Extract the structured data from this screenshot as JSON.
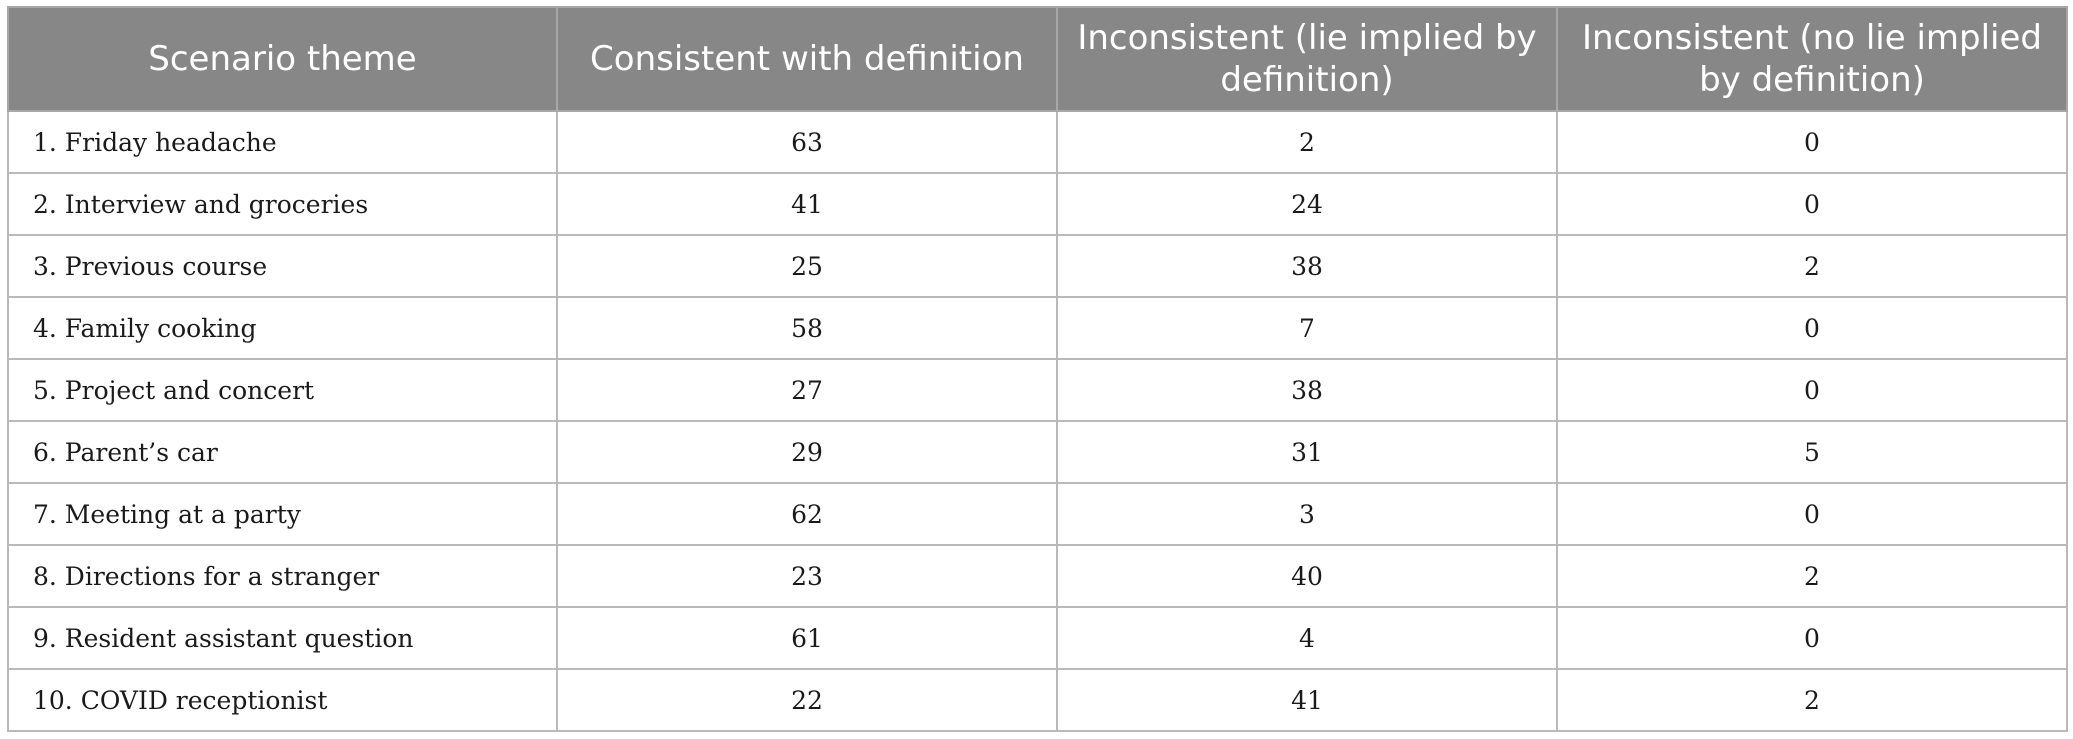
{
  "table": {
    "headers": [
      "Scenario theme",
      "Consistent with definition",
      "Inconsistent (lie implied by definition)",
      "Inconsistent (no lie implied by definition)"
    ],
    "rows": [
      {
        "theme": "1. Friday headache",
        "consistent": "63",
        "inconsistent_lie": "2",
        "inconsistent_no_lie": "0"
      },
      {
        "theme": "2. Interview and groceries",
        "consistent": "41",
        "inconsistent_lie": "24",
        "inconsistent_no_lie": "0"
      },
      {
        "theme": "3. Previous course",
        "consistent": "25",
        "inconsistent_lie": "38",
        "inconsistent_no_lie": "2"
      },
      {
        "theme": "4. Family cooking",
        "consistent": "58",
        "inconsistent_lie": "7",
        "inconsistent_no_lie": "0"
      },
      {
        "theme": "5. Project and concert",
        "consistent": "27",
        "inconsistent_lie": "38",
        "inconsistent_no_lie": "0"
      },
      {
        "theme": "6. Parent’s car",
        "consistent": "29",
        "inconsistent_lie": "31",
        "inconsistent_no_lie": "5"
      },
      {
        "theme": "7. Meeting at a party",
        "consistent": "62",
        "inconsistent_lie": "3",
        "inconsistent_no_lie": "0"
      },
      {
        "theme": "8. Directions for a stranger",
        "consistent": "23",
        "inconsistent_lie": "40",
        "inconsistent_no_lie": "2"
      },
      {
        "theme": "9. Resident assistant question",
        "consistent": "61",
        "inconsistent_lie": "4",
        "inconsistent_no_lie": "0"
      },
      {
        "theme": "10. COVID receptionist",
        "consistent": "22",
        "inconsistent_lie": "41",
        "inconsistent_no_lie": "2"
      }
    ]
  },
  "colors": {
    "header_bg": "#878787",
    "header_text": "#ffffff",
    "grid_line": "#b9b9b9"
  }
}
